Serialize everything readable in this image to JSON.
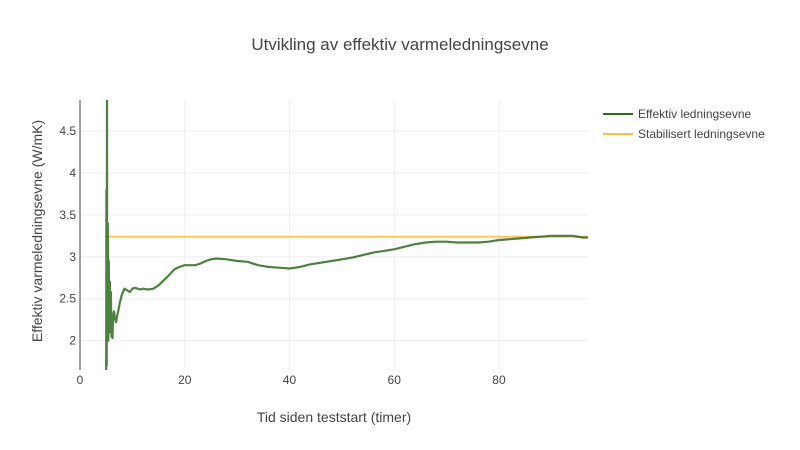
{
  "chart_data": {
    "type": "line",
    "title": "Utvikling av effektiv varmeledningsevne",
    "xlabel": "Tid siden teststart (timer)",
    "ylabel": "Effektiv varmeledningsevne (W/mK)",
    "xlim": [
      0,
      97
    ],
    "ylim": [
      1.65,
      4.87
    ],
    "xticks": [
      0,
      20,
      40,
      60,
      80
    ],
    "yticks": [
      2,
      2.5,
      3,
      3.5,
      4,
      4.5
    ],
    "xtick_labels": [
      "0",
      "20",
      "40",
      "60",
      "80"
    ],
    "ytick_labels": [
      "2",
      "2.5",
      "3",
      "3.5",
      "4",
      "4.5"
    ],
    "grid": true,
    "legend_position": "top-right",
    "series": [
      {
        "name": "Effektiv ledningsevne",
        "color": "#2e6b1f",
        "x": [
          5.0,
          5.05,
          5.1,
          5.15,
          5.2,
          5.3,
          5.4,
          5.5,
          5.6,
          5.7,
          5.8,
          5.9,
          6.0,
          6.1,
          6.2,
          6.3,
          6.5,
          6.7,
          6.9,
          7.1,
          7.3,
          7.6,
          8.0,
          8.5,
          9.0,
          9.5,
          10.0,
          10.5,
          11.0,
          11.5,
          12.0,
          13.0,
          14.0,
          15.0,
          16.0,
          17.0,
          18.0,
          19.0,
          20.0,
          21.0,
          22.0,
          23.0,
          24.0,
          25.0,
          26.0,
          28.0,
          30.0,
          32.0,
          34.0,
          36.0,
          38.0,
          40.0,
          42.0,
          44.0,
          46.0,
          48.0,
          50.0,
          52.0,
          54.0,
          56.0,
          58.0,
          60.0,
          62.0,
          64.0,
          66.0,
          68.0,
          70.0,
          72.0,
          74.0,
          76.0,
          78.0,
          80.0,
          82.0,
          84.0,
          86.0,
          88.0,
          90.0,
          92.0,
          94.0,
          96.0,
          97.0
        ],
        "values": [
          1.65,
          3.8,
          1.7,
          4.87,
          2.0,
          3.4,
          2.0,
          2.95,
          2.1,
          2.7,
          2.2,
          2.58,
          2.05,
          2.2,
          2.03,
          2.3,
          2.35,
          2.25,
          2.22,
          2.3,
          2.35,
          2.45,
          2.55,
          2.62,
          2.6,
          2.58,
          2.62,
          2.63,
          2.62,
          2.61,
          2.62,
          2.61,
          2.62,
          2.66,
          2.72,
          2.78,
          2.85,
          2.88,
          2.9,
          2.9,
          2.9,
          2.92,
          2.95,
          2.97,
          2.98,
          2.97,
          2.95,
          2.94,
          2.9,
          2.88,
          2.87,
          2.86,
          2.88,
          2.91,
          2.93,
          2.95,
          2.97,
          2.99,
          3.02,
          3.05,
          3.07,
          3.09,
          3.12,
          3.15,
          3.17,
          3.18,
          3.18,
          3.17,
          3.17,
          3.17,
          3.18,
          3.2,
          3.21,
          3.22,
          3.23,
          3.24,
          3.25,
          3.25,
          3.25,
          3.23,
          3.23
        ]
      },
      {
        "name": "Stabilisert ledningsevne",
        "color": "#ffbf47",
        "x": [
          5.0,
          97.0
        ],
        "values": [
          3.24,
          3.24
        ]
      }
    ]
  }
}
